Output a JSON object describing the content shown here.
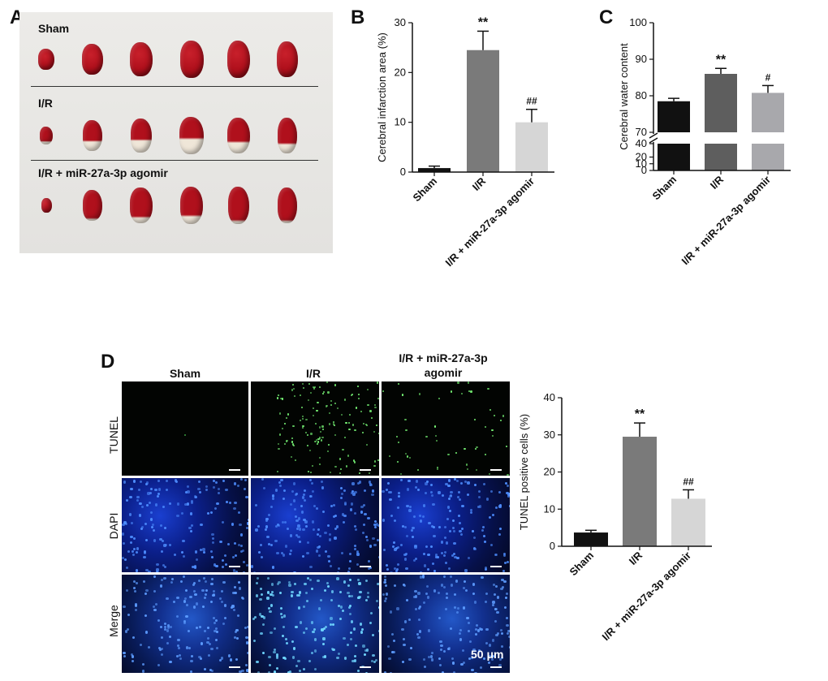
{
  "panels": {
    "a": {
      "letter": "A"
    },
    "b": {
      "letter": "B"
    },
    "c": {
      "letter": "C"
    },
    "d": {
      "letter": "D"
    }
  },
  "photo_a": {
    "groups": [
      "Sham",
      "I/R",
      "I/R + miR-27a-3p agomir"
    ]
  },
  "micrograph_d": {
    "columns": [
      "Sham",
      "I/R",
      "I/R + miR-27a-3p agomir"
    ],
    "rows": [
      "TUNEL",
      "DAPI",
      "Merge"
    ],
    "scale_label": "50 μm"
  },
  "colors": {
    "sham": "#111111",
    "ir": "#7a7a7a",
    "agomir": "#d6d6d6",
    "tissue_red": "#b0101c",
    "tissue_pale": "#efe6d8"
  },
  "chart_data": [
    {
      "id": "B",
      "type": "bar",
      "categories": [
        "Sham",
        "I/R",
        "I/R + miR-27a-3p agomir"
      ],
      "values": [
        0.8,
        24.5,
        10.0
      ],
      "errors": [
        0.4,
        3.8,
        2.6
      ],
      "annotations": [
        "",
        "**",
        "##"
      ],
      "ylabel": "Cerebral infarction area (%)",
      "ylim": [
        0,
        30
      ],
      "yticks": [
        0,
        10,
        20,
        30
      ],
      "colors": [
        "#111111",
        "#7a7a7a",
        "#d6d6d6"
      ],
      "grid": false
    },
    {
      "id": "C",
      "type": "bar",
      "categories": [
        "Sham",
        "I/R",
        "I/R + miR-27a-3p agomir"
      ],
      "values": [
        78.5,
        86.0,
        80.8
      ],
      "errors": [
        0.8,
        1.5,
        2.0
      ],
      "annotations": [
        "",
        "**",
        "#"
      ],
      "ylabel": "Cerebral water content",
      "ylim": [
        0,
        100
      ],
      "axis_break": [
        40,
        70
      ],
      "yticks": [
        0,
        10,
        20,
        40,
        70,
        80,
        90,
        100
      ],
      "colors": [
        "#111111",
        "#5e5e5e",
        "#a8a8ac"
      ],
      "grid": false
    },
    {
      "id": "D",
      "type": "bar",
      "categories": [
        "Sham",
        "I/R",
        "I/R + miR-27a-3p agomir"
      ],
      "values": [
        3.7,
        29.5,
        12.8
      ],
      "errors": [
        0.6,
        3.7,
        2.4
      ],
      "annotations": [
        "",
        "**",
        "##"
      ],
      "ylabel": "TUNEL positive cells (%)",
      "ylim": [
        0,
        40
      ],
      "yticks": [
        0,
        10,
        20,
        30,
        40
      ],
      "colors": [
        "#111111",
        "#7a7a7a",
        "#d6d6d6"
      ],
      "grid": false
    }
  ]
}
